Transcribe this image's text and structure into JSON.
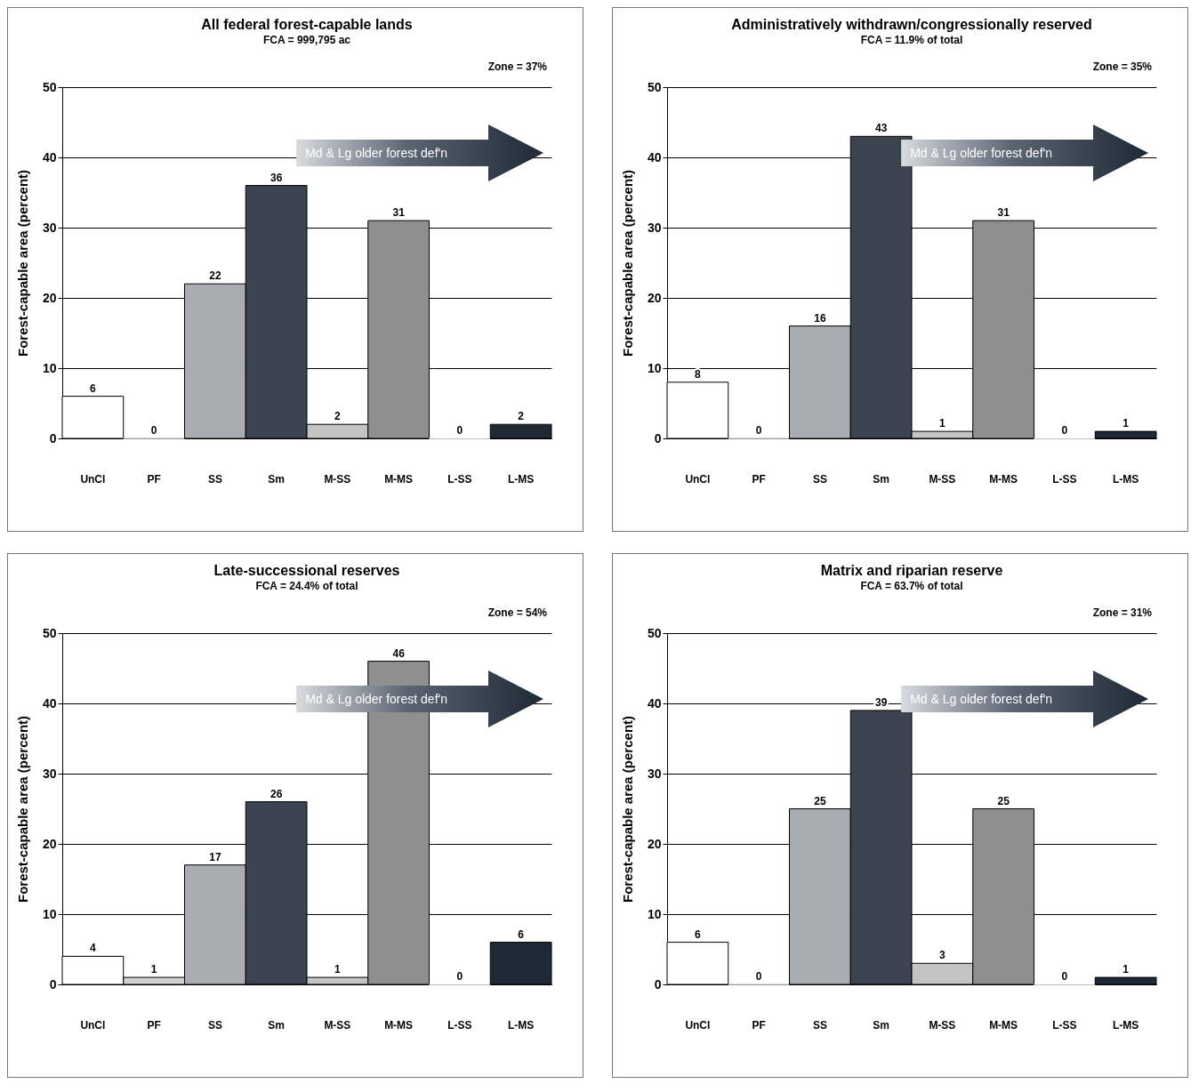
{
  "chart_data": [
    {
      "type": "bar",
      "title": "All federal forest-capable lands",
      "subtitle": "FCA = 999,795 ac",
      "ylabel": "Forest-capable area (percent)",
      "categories": [
        "UnCl",
        "PF",
        "SS",
        "Sm",
        "M-SS",
        "M-MS",
        "L-SS",
        "L-MS"
      ],
      "values": [
        6,
        0,
        22,
        36,
        2,
        31,
        0,
        2
      ],
      "colors": [
        "#ffffff",
        "#d0d0d0",
        "#a9adb3",
        "#3b4250",
        "#c4c4c4",
        "#8f8f8f",
        "#ffffff",
        "#1f2935"
      ],
      "ylim": [
        0,
        50
      ],
      "yticks": [
        0,
        10,
        20,
        30,
        40,
        50
      ],
      "grid": "y",
      "data_labels": true,
      "annotations": [
        "Zone = 37%",
        "Md & Lg older forest def'n"
      ]
    },
    {
      "type": "bar",
      "title": "Administratively withdrawn/congressionally reserved",
      "subtitle": "FCA = 11.9% of total",
      "ylabel": "Forest-capable area (percent)",
      "categories": [
        "UnCl",
        "PF",
        "SS",
        "Sm",
        "M-SS",
        "M-MS",
        "L-SS",
        "L-MS"
      ],
      "values": [
        8,
        0,
        16,
        43,
        1,
        31,
        0,
        1
      ],
      "colors": [
        "#ffffff",
        "#d0d0d0",
        "#a9adb3",
        "#3b4250",
        "#c4c4c4",
        "#8f8f8f",
        "#ffffff",
        "#1f2935"
      ],
      "ylim": [
        0,
        50
      ],
      "yticks": [
        0,
        10,
        20,
        30,
        40,
        50
      ],
      "grid": "y",
      "data_labels": true,
      "annotations": [
        "Zone = 35%",
        "Md & Lg older forest def'n"
      ]
    },
    {
      "type": "bar",
      "title": "Late-successional reserves",
      "subtitle": "FCA = 24.4% of total",
      "ylabel": "Forest-capable area (percent)",
      "categories": [
        "UnCl",
        "PF",
        "SS",
        "Sm",
        "M-SS",
        "M-MS",
        "L-SS",
        "L-MS"
      ],
      "values": [
        4,
        1,
        17,
        26,
        1,
        46,
        0,
        6
      ],
      "colors": [
        "#ffffff",
        "#d0d0d0",
        "#a9adb3",
        "#3b4250",
        "#c4c4c4",
        "#8f8f8f",
        "#ffffff",
        "#1f2935"
      ],
      "ylim": [
        0,
        50
      ],
      "yticks": [
        0,
        10,
        20,
        30,
        40,
        50
      ],
      "grid": "y",
      "data_labels": true,
      "annotations": [
        "Zone = 54%",
        "Md & Lg older forest def'n"
      ]
    },
    {
      "type": "bar",
      "title": "Matrix and riparian reserve",
      "subtitle": "FCA = 63.7% of total",
      "ylabel": "Forest-capable area (percent)",
      "categories": [
        "UnCl",
        "PF",
        "SS",
        "Sm",
        "M-SS",
        "M-MS",
        "L-SS",
        "L-MS"
      ],
      "values": [
        6,
        0,
        25,
        39,
        3,
        25,
        0,
        1
      ],
      "colors": [
        "#ffffff",
        "#d0d0d0",
        "#a9adb3",
        "#3b4250",
        "#c4c4c4",
        "#8f8f8f",
        "#ffffff",
        "#1f2935"
      ],
      "ylim": [
        0,
        50
      ],
      "yticks": [
        0,
        10,
        20,
        30,
        40,
        50
      ],
      "grid": "y",
      "data_labels": true,
      "annotations": [
        "Zone = 31%",
        "Md & Lg older forest def'n"
      ]
    }
  ]
}
